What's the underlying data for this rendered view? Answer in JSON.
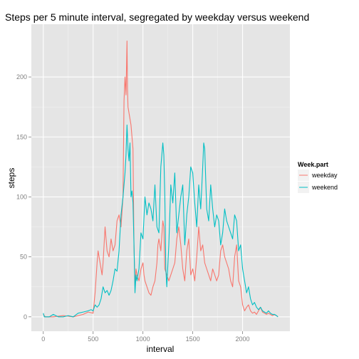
{
  "chart_data": {
    "type": "line",
    "title": "Steps per 5 minute interval, segregated by weekday versus weekend",
    "xlabel": "interval",
    "ylabel": "steps",
    "xlim": [
      -120,
      2475
    ],
    "ylim": [
      -12,
      244
    ],
    "x_ticks": [
      0,
      500,
      1000,
      1500,
      2000
    ],
    "y_ticks": [
      0,
      50,
      100,
      150,
      200
    ],
    "grid": true,
    "legend": {
      "title": "Week.part",
      "position": "right"
    },
    "series": [
      {
        "name": "weekday",
        "color": "#F8766D",
        "x": [
          0,
          20,
          40,
          100,
          200,
          300,
          400,
          450,
          500,
          520,
          540,
          550,
          560,
          580,
          590,
          600,
          610,
          620,
          640,
          660,
          680,
          700,
          720,
          740,
          760,
          780,
          800,
          810,
          820,
          830,
          840,
          845,
          850,
          860,
          870,
          880,
          890,
          900,
          910,
          920,
          930,
          940,
          960,
          980,
          1000,
          1010,
          1020,
          1040,
          1060,
          1080,
          1100,
          1120,
          1140,
          1150,
          1160,
          1180,
          1200,
          1210,
          1220,
          1240,
          1260,
          1280,
          1300,
          1320,
          1340,
          1360,
          1380,
          1400,
          1420,
          1440,
          1460,
          1480,
          1500,
          1520,
          1540,
          1560,
          1580,
          1600,
          1620,
          1640,
          1660,
          1680,
          1700,
          1720,
          1740,
          1760,
          1780,
          1800,
          1820,
          1840,
          1860,
          1880,
          1900,
          1920,
          1940,
          1960,
          1980,
          2000,
          2020,
          2040,
          2060,
          2080,
          2100,
          2120,
          2140,
          2160,
          2180,
          2200,
          2220,
          2240,
          2260,
          2280,
          2300,
          2320,
          2340,
          2355
        ],
        "values": [
          2,
          0,
          0,
          0,
          1,
          0,
          2,
          4,
          3,
          20,
          45,
          55,
          50,
          40,
          35,
          45,
          60,
          75,
          55,
          50,
          65,
          55,
          60,
          80,
          85,
          75,
          100,
          180,
          200,
          185,
          230,
          190,
          175,
          170,
          165,
          160,
          150,
          140,
          60,
          25,
          40,
          35,
          30,
          40,
          45,
          35,
          30,
          25,
          20,
          18,
          25,
          30,
          45,
          60,
          65,
          55,
          80,
          75,
          40,
          35,
          30,
          35,
          40,
          45,
          65,
          75,
          60,
          40,
          30,
          55,
          65,
          35,
          40,
          30,
          50,
          75,
          55,
          60,
          45,
          40,
          35,
          30,
          40,
          35,
          30,
          35,
          55,
          60,
          50,
          45,
          40,
          30,
          25,
          50,
          60,
          30,
          25,
          10,
          5,
          8,
          10,
          5,
          3,
          4,
          2,
          5,
          8,
          4,
          3,
          2,
          3,
          2,
          1,
          2,
          1,
          0
        ]
      },
      {
        "name": "weekend",
        "color": "#00BFC4",
        "x": [
          0,
          10,
          30,
          60,
          100,
          150,
          200,
          250,
          300,
          350,
          400,
          450,
          480,
          500,
          520,
          540,
          560,
          580,
          600,
          620,
          640,
          660,
          680,
          700,
          720,
          740,
          760,
          780,
          800,
          820,
          830,
          840,
          850,
          860,
          870,
          880,
          890,
          900,
          910,
          920,
          930,
          940,
          960,
          980,
          1000,
          1020,
          1040,
          1060,
          1080,
          1100,
          1120,
          1140,
          1160,
          1180,
          1200,
          1210,
          1220,
          1230,
          1240,
          1260,
          1280,
          1300,
          1320,
          1340,
          1360,
          1380,
          1400,
          1420,
          1440,
          1460,
          1480,
          1500,
          1520,
          1540,
          1560,
          1580,
          1600,
          1610,
          1620,
          1640,
          1660,
          1680,
          1700,
          1720,
          1740,
          1760,
          1780,
          1800,
          1820,
          1840,
          1860,
          1880,
          1900,
          1920,
          1940,
          1960,
          1980,
          2000,
          2020,
          2040,
          2060,
          2080,
          2100,
          2120,
          2140,
          2160,
          2180,
          2200,
          2220,
          2240,
          2260,
          2280,
          2300,
          2320,
          2340,
          2355
        ],
        "values": [
          3,
          0,
          0,
          0,
          2,
          0,
          0,
          1,
          0,
          3,
          4,
          5,
          6,
          5,
          10,
          8,
          10,
          15,
          25,
          20,
          22,
          18,
          22,
          30,
          40,
          38,
          55,
          85,
          100,
          120,
          135,
          160,
          140,
          130,
          145,
          100,
          105,
          95,
          60,
          20,
          35,
          30,
          40,
          70,
          65,
          100,
          85,
          95,
          90,
          80,
          110,
          75,
          70,
          125,
          145,
          135,
          100,
          40,
          25,
          60,
          110,
          95,
          120,
          70,
          85,
          100,
          110,
          60,
          85,
          100,
          125,
          120,
          95,
          75,
          110,
          90,
          125,
          145,
          140,
          90,
          80,
          110,
          90,
          75,
          85,
          80,
          60,
          70,
          90,
          80,
          75,
          70,
          65,
          85,
          80,
          55,
          60,
          40,
          30,
          20,
          25,
          15,
          10,
          12,
          8,
          6,
          8,
          5,
          4,
          3,
          5,
          3,
          2,
          2,
          1,
          0
        ]
      }
    ]
  }
}
